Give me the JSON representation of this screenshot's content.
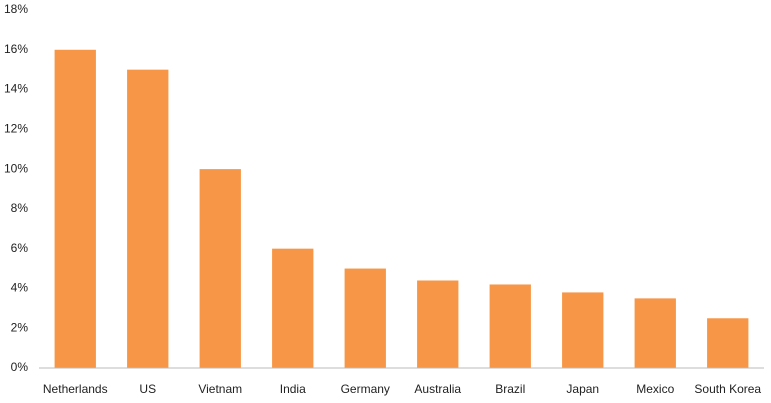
{
  "chart_data": {
    "type": "bar",
    "categories": [
      "Netherlands",
      "US",
      "Vietnam",
      "India",
      "Germany",
      "Australia",
      "Brazil",
      "Japan",
      "Mexico",
      "South Korea"
    ],
    "values": [
      16,
      15,
      10,
      6,
      5,
      4.4,
      4.2,
      3.8,
      3.5,
      2.5
    ],
    "color": "#f79646",
    "ylim": [
      0,
      18
    ],
    "yticks": [
      {
        "value": 0,
        "label": "0%"
      },
      {
        "value": 2,
        "label": "2%"
      },
      {
        "value": 4,
        "label": "4%"
      },
      {
        "value": 6,
        "label": "6%"
      },
      {
        "value": 8,
        "label": "8%"
      },
      {
        "value": 10,
        "label": "10%"
      },
      {
        "value": 12,
        "label": "12%"
      },
      {
        "value": 14,
        "label": "14%"
      },
      {
        "value": 16,
        "label": "16%"
      },
      {
        "value": 18,
        "label": "18%"
      }
    ],
    "grid": false
  }
}
